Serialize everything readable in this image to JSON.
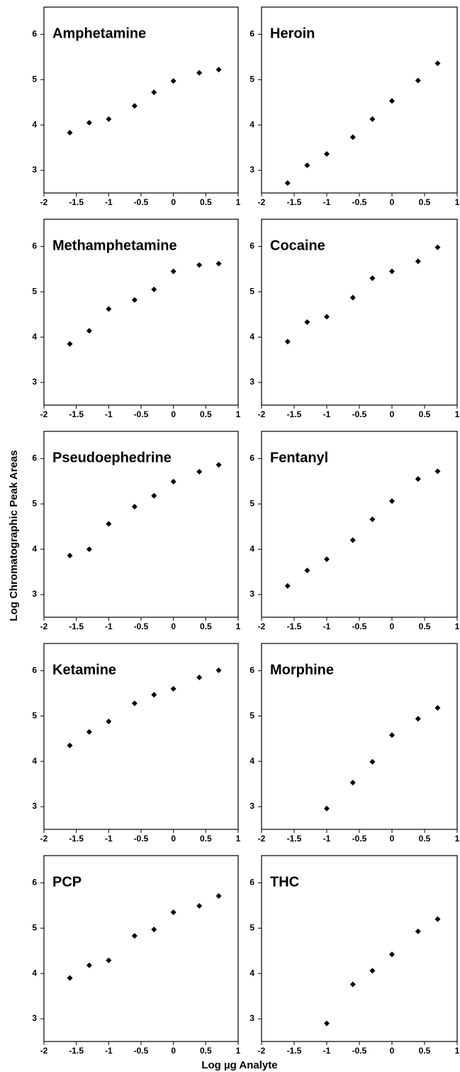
{
  "y_label": "Log Chromatographic Peak Areas",
  "x_label": "Log µg Analyte",
  "chart_data": [
    {
      "type": "scatter",
      "title": "Amphetamine",
      "x": [
        -1.6,
        -1.3,
        -1,
        -0.6,
        -0.3,
        0,
        0.4,
        0.7
      ],
      "values": [
        3.83,
        4.05,
        4.13,
        4.42,
        4.72,
        4.97,
        5.15,
        5.22
      ],
      "color": "#000000",
      "xlim": [
        -2,
        1
      ],
      "ylim": [
        2.5,
        6.6
      ],
      "xticks": [
        -2,
        -1.5,
        -1,
        -0.5,
        0,
        0.5,
        1
      ],
      "yticks": [
        3,
        4,
        5,
        6
      ]
    },
    {
      "type": "scatter",
      "title": "Heroin",
      "x": [
        -1.6,
        -1.3,
        -1,
        -0.6,
        -0.3,
        0,
        0.4,
        0.7
      ],
      "values": [
        2.72,
        3.11,
        3.36,
        3.73,
        4.13,
        4.53,
        4.98,
        5.36
      ],
      "color": "#000000",
      "xlim": [
        -2,
        1
      ],
      "ylim": [
        2.5,
        6.6
      ],
      "xticks": [
        -2,
        -1.5,
        -1,
        -0.5,
        0,
        0.5,
        1
      ],
      "yticks": [
        3,
        4,
        5,
        6
      ]
    },
    {
      "type": "scatter",
      "title": "Methamphetamine",
      "x": [
        -1.6,
        -1.3,
        -1,
        -0.6,
        -0.3,
        0,
        0.4,
        0.7
      ],
      "values": [
        3.85,
        4.14,
        4.62,
        4.82,
        5.05,
        5.45,
        5.59,
        5.62
      ],
      "color": "#000000",
      "xlim": [
        -2,
        1
      ],
      "ylim": [
        2.5,
        6.6
      ],
      "xticks": [
        -2,
        -1.5,
        -1,
        -0.5,
        0,
        0.5,
        1
      ],
      "yticks": [
        3,
        4,
        5,
        6
      ]
    },
    {
      "type": "scatter",
      "title": "Cocaine",
      "x": [
        -1.6,
        -1.3,
        -1,
        -0.6,
        -0.3,
        0,
        0.4,
        0.7
      ],
      "values": [
        3.9,
        4.33,
        4.45,
        4.87,
        5.3,
        5.45,
        5.67,
        5.98
      ],
      "color": "#000000",
      "xlim": [
        -2,
        1
      ],
      "ylim": [
        2.5,
        6.6
      ],
      "xticks": [
        -2,
        -1.5,
        -1,
        -0.5,
        0,
        0.5,
        1
      ],
      "yticks": [
        3,
        4,
        5,
        6
      ]
    },
    {
      "type": "scatter",
      "title": "Pseudoephedrine",
      "x": [
        -1.6,
        -1.3,
        -1,
        -0.6,
        -0.3,
        0,
        0.4,
        0.7
      ],
      "values": [
        3.86,
        4.0,
        4.56,
        4.94,
        5.18,
        5.49,
        5.71,
        5.86
      ],
      "color": "#000000",
      "xlim": [
        -2,
        1
      ],
      "ylim": [
        2.5,
        6.6
      ],
      "xticks": [
        -2,
        -1.5,
        -1,
        -0.5,
        0,
        0.5,
        1
      ],
      "yticks": [
        3,
        4,
        5,
        6
      ]
    },
    {
      "type": "scatter",
      "title": "Fentanyl",
      "x": [
        -1.6,
        -1.3,
        -1,
        -0.6,
        -0.3,
        0,
        0.4,
        0.7
      ],
      "values": [
        3.19,
        3.53,
        3.78,
        4.2,
        4.66,
        5.06,
        5.55,
        5.72
      ],
      "color": "#000000",
      "xlim": [
        -2,
        1
      ],
      "ylim": [
        2.5,
        6.6
      ],
      "xticks": [
        -2,
        -1.5,
        -1,
        -0.5,
        0,
        0.5,
        1
      ],
      "yticks": [
        3,
        4,
        5,
        6
      ]
    },
    {
      "type": "scatter",
      "title": "Ketamine",
      "x": [
        -1.6,
        -1.3,
        -1,
        -0.6,
        -0.3,
        0,
        0.4,
        0.7
      ],
      "values": [
        4.35,
        4.65,
        4.88,
        5.28,
        5.47,
        5.6,
        5.85,
        6.01
      ],
      "color": "#000000",
      "xlim": [
        -2,
        1
      ],
      "ylim": [
        2.5,
        6.6
      ],
      "xticks": [
        -2,
        -1.5,
        -1,
        -0.5,
        0,
        0.5,
        1
      ],
      "yticks": [
        3,
        4,
        5,
        6
      ]
    },
    {
      "type": "scatter",
      "title": "Morphine",
      "x": [
        -1,
        -0.6,
        -0.3,
        0,
        0.4,
        0.7
      ],
      "values": [
        2.96,
        3.53,
        3.99,
        4.58,
        4.94,
        5.18
      ],
      "color": "#000000",
      "xlim": [
        -2,
        1
      ],
      "ylim": [
        2.5,
        6.6
      ],
      "xticks": [
        -2,
        -1.5,
        -1,
        -0.5,
        0,
        0.5,
        1
      ],
      "yticks": [
        3,
        4,
        5,
        6
      ]
    },
    {
      "type": "scatter",
      "title": "PCP",
      "x": [
        -1.6,
        -1.3,
        -1,
        -0.6,
        -0.3,
        0,
        0.4,
        0.7
      ],
      "values": [
        3.9,
        4.18,
        4.29,
        4.83,
        4.97,
        5.35,
        5.49,
        5.71
      ],
      "color": "#000000",
      "xlim": [
        -2,
        1
      ],
      "ylim": [
        2.5,
        6.6
      ],
      "xticks": [
        -2,
        -1.5,
        -1,
        -0.5,
        0,
        0.5,
        1
      ],
      "yticks": [
        3,
        4,
        5,
        6
      ]
    },
    {
      "type": "scatter",
      "title": "THC",
      "x": [
        -1,
        -0.6,
        -0.3,
        0,
        0.4,
        0.7
      ],
      "values": [
        2.9,
        3.76,
        4.06,
        4.42,
        4.93,
        5.2
      ],
      "color": "#000000",
      "xlim": [
        -2,
        1
      ],
      "ylim": [
        2.5,
        6.6
      ],
      "xticks": [
        -2,
        -1.5,
        -1,
        -0.5,
        0,
        0.5,
        1
      ],
      "yticks": [
        3,
        4,
        5,
        6
      ]
    }
  ]
}
